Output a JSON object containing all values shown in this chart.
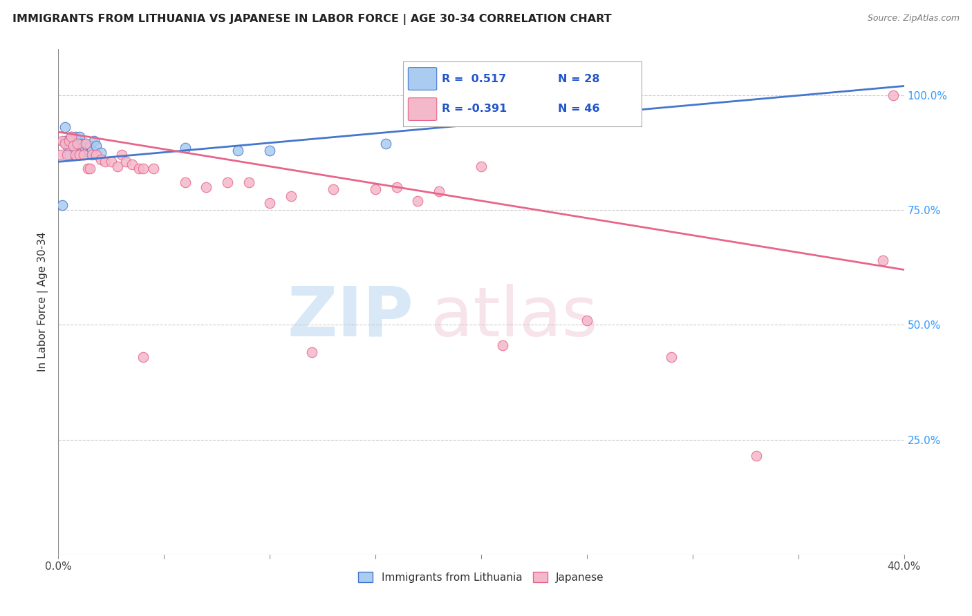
{
  "title": "IMMIGRANTS FROM LITHUANIA VS JAPANESE IN LABOR FORCE | AGE 30-34 CORRELATION CHART",
  "source": "Source: ZipAtlas.com",
  "ylabel": "In Labor Force | Age 30-34",
  "xlim": [
    0.0,
    0.4
  ],
  "ylim": [
    0.0,
    1.1
  ],
  "xticks": [
    0.0,
    0.05,
    0.1,
    0.15,
    0.2,
    0.25,
    0.3,
    0.35,
    0.4
  ],
  "yticks_right": [
    0.25,
    0.5,
    0.75,
    1.0
  ],
  "ytick_right_labels": [
    "25.0%",
    "50.0%",
    "75.0%",
    "100.0%"
  ],
  "color_lithuania": "#aaccf0",
  "color_japanese": "#f4b8cb",
  "color_line_lithuania": "#4477cc",
  "color_line_japanese": "#e8658a",
  "background_color": "#ffffff",
  "grid_color": "#cccccc",
  "lit_r": 0.517,
  "lit_n": 28,
  "jap_r": -0.391,
  "jap_n": 46,
  "lit_trend_x0": 0.0,
  "lit_trend_y0": 0.855,
  "lit_trend_x1": 0.4,
  "lit_trend_y1": 1.02,
  "jap_trend_x0": 0.0,
  "jap_trend_y0": 0.92,
  "jap_trend_x1": 0.4,
  "jap_trend_y1": 0.62,
  "lithuania_x": [
    0.002,
    0.003,
    0.004,
    0.005,
    0.006,
    0.007,
    0.008,
    0.009,
    0.01,
    0.01,
    0.011,
    0.011,
    0.012,
    0.013,
    0.014,
    0.015,
    0.015,
    0.016,
    0.017,
    0.018,
    0.02,
    0.06,
    0.085,
    0.1,
    0.155,
    0.215,
    0.003,
    0.005
  ],
  "lithuania_y": [
    0.76,
    0.9,
    0.89,
    0.87,
    0.91,
    0.9,
    0.91,
    0.88,
    0.895,
    0.91,
    0.875,
    0.895,
    0.89,
    0.895,
    0.88,
    0.89,
    0.875,
    0.88,
    0.9,
    0.89,
    0.875,
    0.885,
    0.88,
    0.88,
    0.895,
    0.965,
    0.93,
    0.89
  ],
  "japanese_x": [
    0.001,
    0.002,
    0.003,
    0.004,
    0.005,
    0.006,
    0.007,
    0.008,
    0.009,
    0.01,
    0.012,
    0.013,
    0.014,
    0.015,
    0.016,
    0.018,
    0.02,
    0.022,
    0.025,
    0.028,
    0.03,
    0.032,
    0.035,
    0.038,
    0.04,
    0.045,
    0.06,
    0.07,
    0.08,
    0.09,
    0.1,
    0.11,
    0.13,
    0.15,
    0.16,
    0.18,
    0.2,
    0.17,
    0.21,
    0.25,
    0.29,
    0.33,
    0.39,
    0.395,
    0.12,
    0.04
  ],
  "japanese_y": [
    0.87,
    0.9,
    0.895,
    0.87,
    0.9,
    0.91,
    0.89,
    0.87,
    0.895,
    0.87,
    0.87,
    0.895,
    0.84,
    0.84,
    0.87,
    0.87,
    0.86,
    0.855,
    0.855,
    0.845,
    0.87,
    0.855,
    0.85,
    0.84,
    0.84,
    0.84,
    0.81,
    0.8,
    0.81,
    0.81,
    0.765,
    0.78,
    0.795,
    0.795,
    0.8,
    0.79,
    0.845,
    0.77,
    0.455,
    0.51,
    0.43,
    0.215,
    0.64,
    1.0,
    0.44,
    0.43
  ]
}
